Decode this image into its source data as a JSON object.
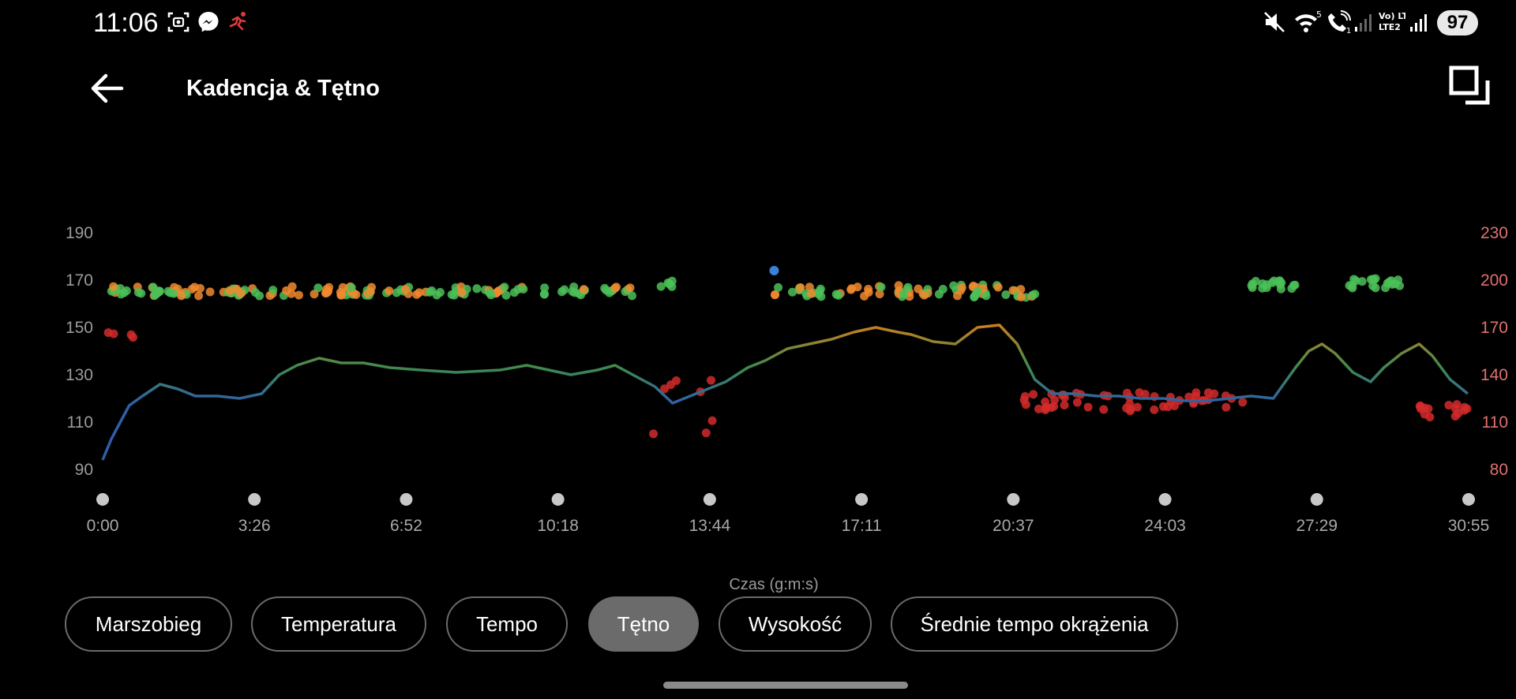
{
  "status_bar": {
    "time": "11:06",
    "left_icons": [
      "screenshot-icon",
      "messenger-icon",
      "running-icon"
    ],
    "right_icons": [
      "mute-icon",
      "wifi-5-icon",
      "wifi-call-icon",
      "signal-1-icon",
      "volte-lte2-icon",
      "signal-2-icon"
    ],
    "volte_label": "Vo) LTE2",
    "battery": "97"
  },
  "header": {
    "title": "Kadencja & Tętno",
    "back_icon": "arrow-left-icon",
    "expand_icon": "window-expand-icon"
  },
  "chart_data": {
    "type": "line",
    "title": "",
    "xlabel": "Czas (g:m:s)",
    "x_ticks": [
      "0:00",
      "3:26",
      "6:52",
      "10:18",
      "13:44",
      "17:11",
      "20:37",
      "24:03",
      "27:29",
      "30:55"
    ],
    "xlim_minutes": [
      0,
      30.92
    ],
    "left_axis": {
      "label": "",
      "ticks": [
        "90",
        "110",
        "130",
        "150",
        "170",
        "190"
      ],
      "ylim": [
        90,
        190
      ]
    },
    "right_axis": {
      "label": "",
      "ticks": [
        "80",
        "110",
        "140",
        "170",
        "200",
        "230"
      ],
      "ylim": [
        80,
        230
      ],
      "color": "#e07070"
    },
    "series": [
      {
        "name": "",
        "kind": "line",
        "axis": "left",
        "x": [
          0,
          0.2,
          0.4,
          0.6,
          0.9,
          1.3,
          1.7,
          2.1,
          2.6,
          3.1,
          3.6,
          4.0,
          4.4,
          4.9,
          5.4,
          5.9,
          6.5,
          7.2,
          8.0,
          9.0,
          9.6,
          10.1,
          10.6,
          11.2,
          11.6,
          12.0,
          12.5,
          12.9,
          13.3,
          13.7,
          14.1,
          14.6,
          15.0,
          15.5,
          16.0,
          16.5,
          17.0,
          17.5,
          18.0,
          18.3,
          18.8,
          19.3,
          19.8,
          20.3,
          20.7,
          21.1,
          21.5,
          22.0,
          22.5,
          23.0,
          23.5,
          24.0,
          24.5,
          25.0,
          25.5,
          26.0,
          26.5,
          27.0,
          27.3,
          27.6,
          27.9,
          28.3,
          28.7,
          29.0,
          29.4,
          29.8,
          30.1,
          30.5,
          30.9
        ],
        "y": [
          94,
          103,
          110,
          117,
          121,
          126,
          124,
          121,
          121,
          120,
          122,
          130,
          134,
          137,
          135,
          135,
          133,
          132,
          131,
          132,
          134,
          132,
          130,
          132,
          134,
          130,
          125,
          118,
          121,
          124,
          127,
          133,
          136,
          141,
          143,
          145,
          148,
          150,
          148,
          147,
          144,
          143,
          150,
          151,
          143,
          128,
          122,
          122,
          121,
          121,
          120,
          120,
          119,
          119,
          120,
          121,
          120,
          133,
          140,
          143,
          139,
          131,
          127,
          133,
          139,
          143,
          138,
          128,
          122
        ],
        "color_low": "#2f5fa8",
        "color_mid": "#3f8a4e",
        "color_high": "#d07d1c"
      },
      {
        "name": "",
        "kind": "scatter",
        "axis": "right",
        "groups": [
          {
            "x_range": [
              0.2,
              12.0
            ],
            "y_mean": 193,
            "jitter": 3,
            "count": 160,
            "colors": [
              "#4bbf58",
              "#f08a2e"
            ]
          },
          {
            "x_range": [
              12.6,
              12.9
            ],
            "y_mean": 197,
            "jitter": 3,
            "count": 5,
            "colors": [
              "#4bbf58"
            ]
          },
          {
            "x_range": [
              15.2,
              21.2
            ],
            "y_mean": 193,
            "jitter": 4,
            "count": 80,
            "colors": [
              "#4bbf58",
              "#f08a2e"
            ]
          },
          {
            "x_range": [
              26.0,
              27.0
            ],
            "y_mean": 197,
            "jitter": 3,
            "count": 18,
            "colors": [
              "#4bbf58"
            ]
          },
          {
            "x_range": [
              28.2,
              29.4
            ],
            "y_mean": 198,
            "jitter": 3,
            "count": 20,
            "colors": [
              "#4bbf58"
            ]
          },
          {
            "x_range": [
              0.1,
              0.7
            ],
            "y_mean": 165,
            "jitter": 5,
            "count": 4,
            "colors": [
              "#d42a2a"
            ]
          },
          {
            "x_range": [
              12.3,
              13.9
            ],
            "y_mean": 120,
            "jitter": 18,
            "count": 8,
            "colors": [
              "#d42a2a"
            ]
          },
          {
            "x_range": [
              20.8,
              25.9
            ],
            "y_mean": 123,
            "jitter": 6,
            "count": 55,
            "colors": [
              "#d42a2a"
            ]
          },
          {
            "x_range": [
              29.8,
              30.9
            ],
            "y_mean": 117,
            "jitter": 5,
            "count": 15,
            "colors": [
              "#d42a2a"
            ]
          }
        ]
      }
    ],
    "grid": false,
    "legend": "none"
  },
  "chips": [
    {
      "label": "Marszobieg",
      "active": false
    },
    {
      "label": "Temperatura",
      "active": false
    },
    {
      "label": "Tempo",
      "active": false
    },
    {
      "label": "Tętno",
      "active": true
    },
    {
      "label": "Wysokość",
      "active": false
    },
    {
      "label": "Średnie tempo okrążenia",
      "active": false
    }
  ]
}
